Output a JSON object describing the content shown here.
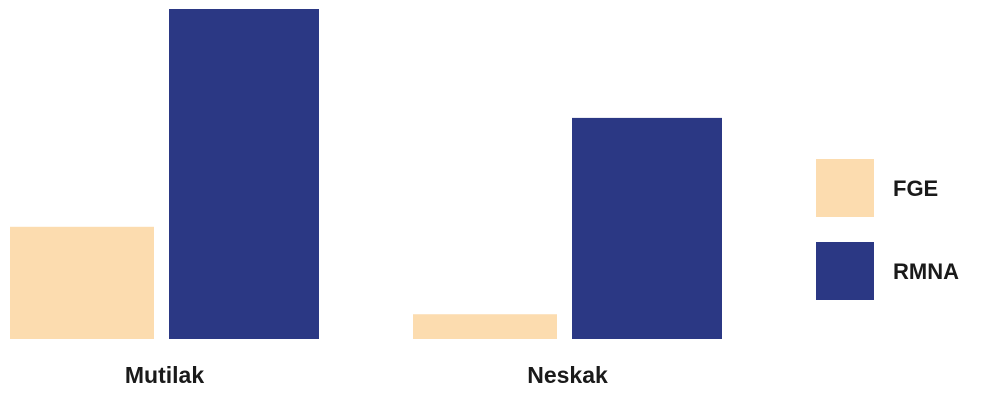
{
  "chart_data": {
    "type": "bar",
    "title": "",
    "xlabel": "",
    "ylabel": "",
    "categories": [
      "Mutilak",
      "Neskak"
    ],
    "series": [
      {
        "name": "FGE",
        "values": [
          34,
          7.5
        ],
        "color": "#FCDCAF"
      },
      {
        "name": "RMNA",
        "values": [
          100,
          67
        ],
        "color": "#2B3884"
      }
    ],
    "ylim": [
      0,
      100
    ],
    "grid": false,
    "legend": {
      "position": "right"
    }
  }
}
